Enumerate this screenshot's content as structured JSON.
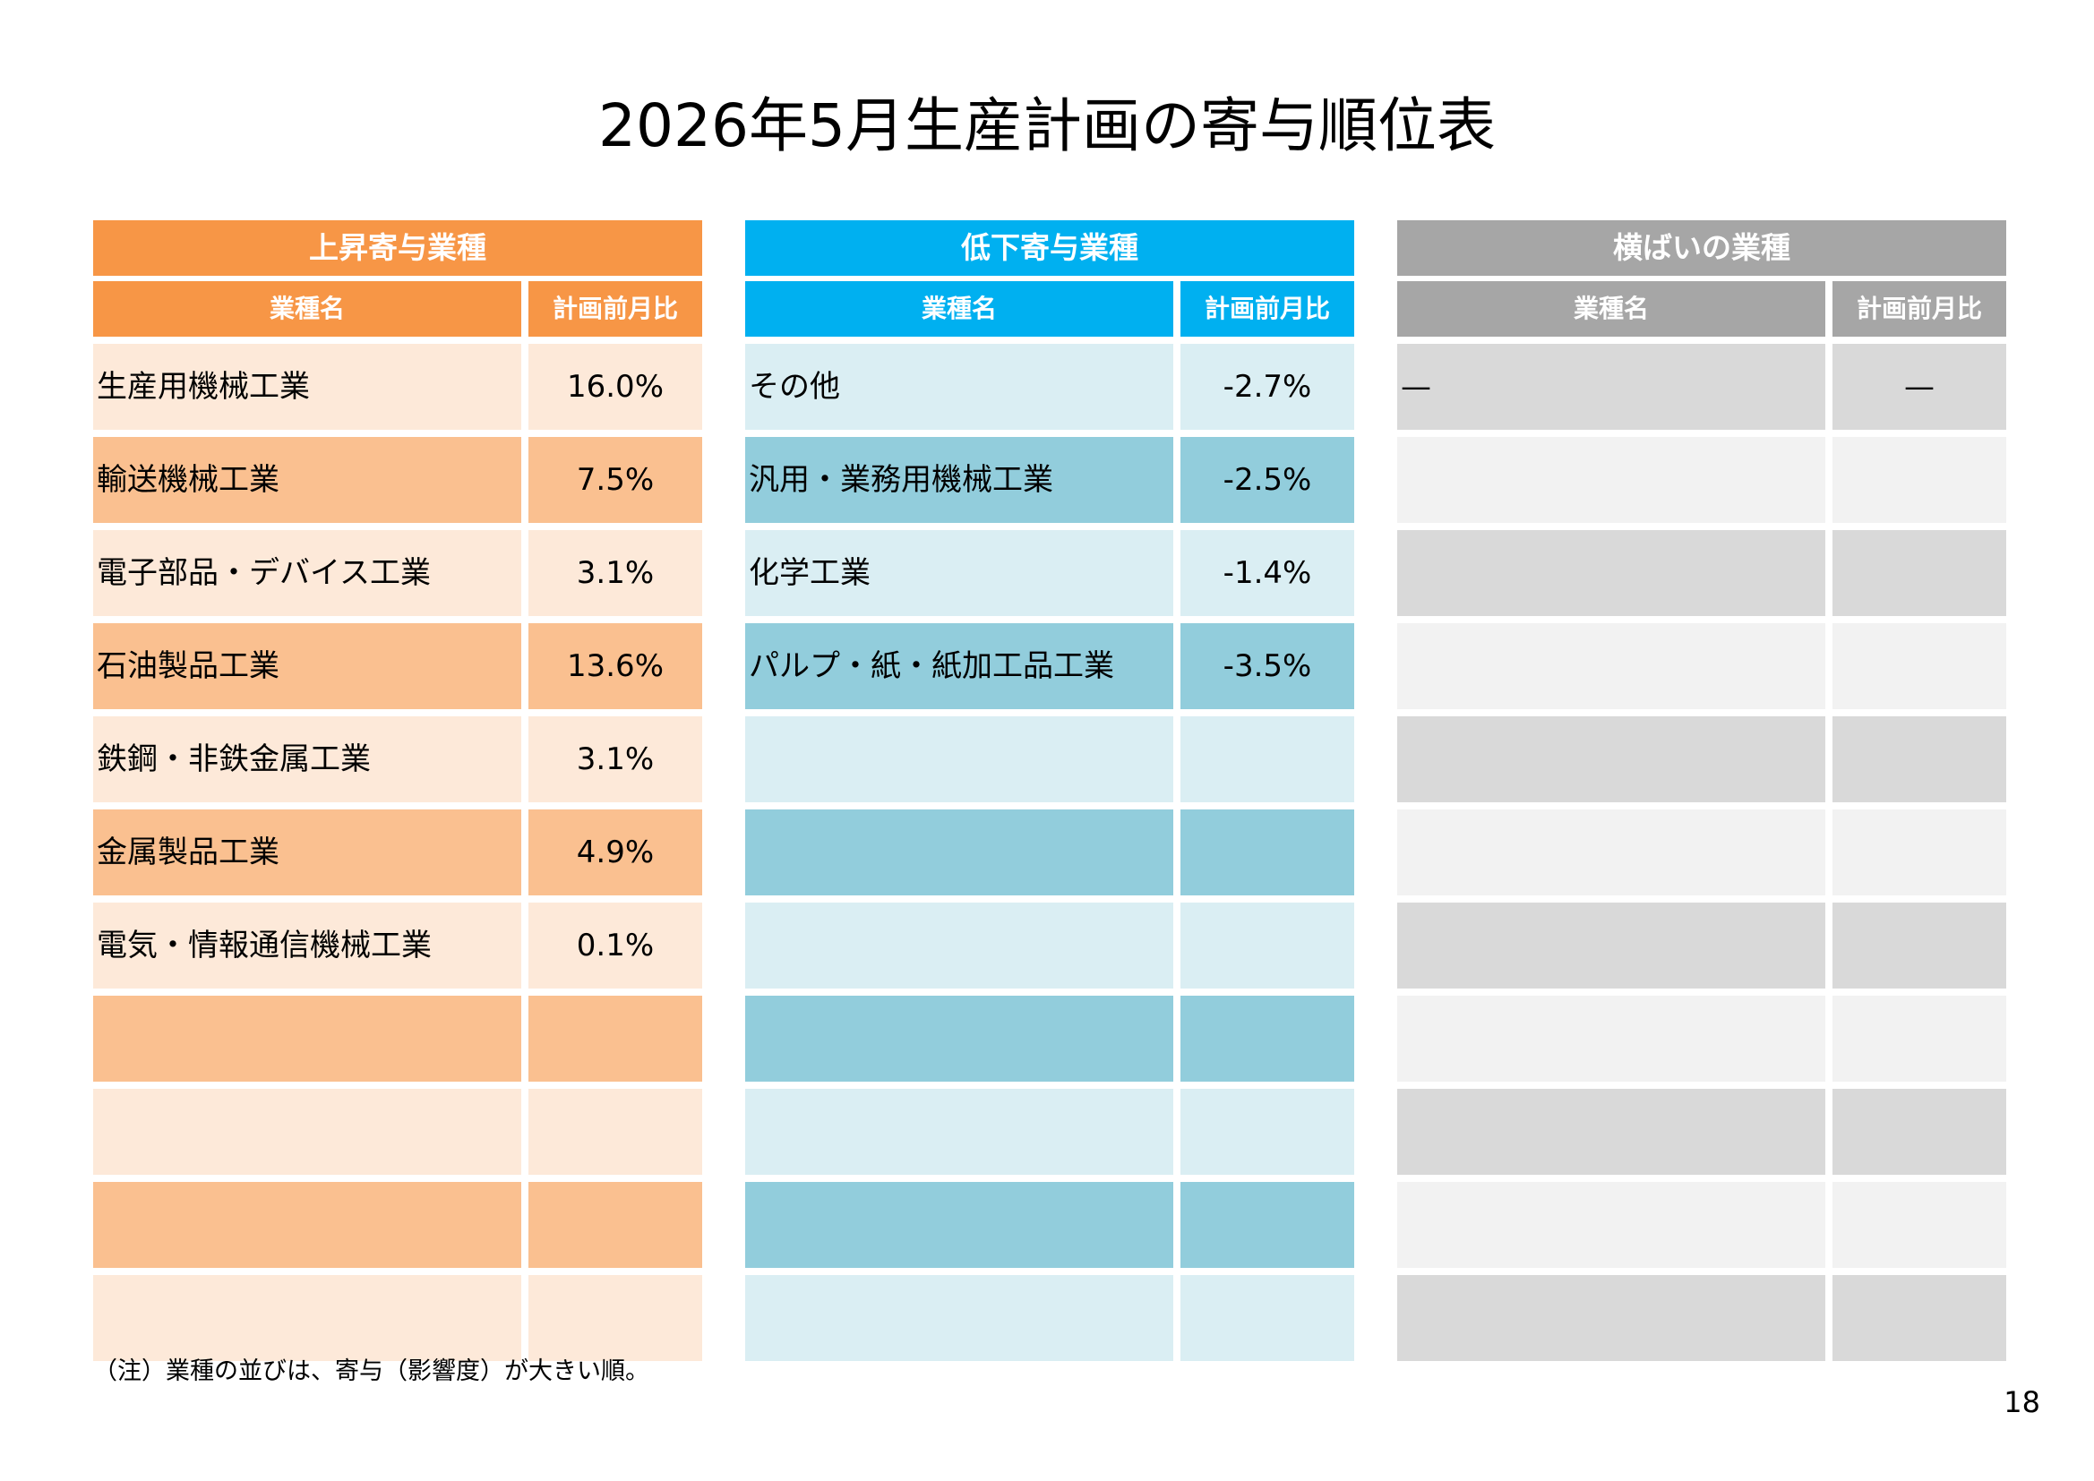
{
  "title": "2026年5月生産計画の寄与順位表",
  "panels": [
    {
      "heading": "上昇寄与業種",
      "col_name": "業種名",
      "col_value": "計画前月比",
      "rows": [
        {
          "name": "生産用機械工業",
          "value": "16.0%"
        },
        {
          "name": "輸送機械工業",
          "value": "7.5%"
        },
        {
          "name": "電子部品・デバイス工業",
          "value": "3.1%"
        },
        {
          "name": "石油製品工業",
          "value": "13.6%"
        },
        {
          "name": "鉄鋼・非鉄金属工業",
          "value": "3.1%"
        },
        {
          "name": "金属製品工業",
          "value": "4.9%"
        },
        {
          "name": "電気・情報通信機械工業",
          "value": "0.1%"
        },
        {
          "name": "",
          "value": ""
        },
        {
          "name": "",
          "value": ""
        },
        {
          "name": "",
          "value": ""
        },
        {
          "name": "",
          "value": ""
        }
      ]
    },
    {
      "heading": "低下寄与業種",
      "col_name": "業種名",
      "col_value": "計画前月比",
      "rows": [
        {
          "name": "その他",
          "value": "-2.7%"
        },
        {
          "name": "汎用・業務用機械工業",
          "value": "-2.5%"
        },
        {
          "name": "化学工業",
          "value": "-1.4%"
        },
        {
          "name": "パルプ・紙・紙加工品工業",
          "value": "-3.5%"
        },
        {
          "name": "",
          "value": ""
        },
        {
          "name": "",
          "value": ""
        },
        {
          "name": "",
          "value": ""
        },
        {
          "name": "",
          "value": ""
        },
        {
          "name": "",
          "value": ""
        },
        {
          "name": "",
          "value": ""
        },
        {
          "name": "",
          "value": ""
        }
      ]
    },
    {
      "heading": "横ばいの業種",
      "col_name": "業種名",
      "col_value": "計画前月比",
      "rows": [
        {
          "name": "—",
          "value": "—"
        },
        {
          "name": "",
          "value": ""
        },
        {
          "name": "",
          "value": ""
        },
        {
          "name": "",
          "value": ""
        },
        {
          "name": "",
          "value": ""
        },
        {
          "name": "",
          "value": ""
        },
        {
          "name": "",
          "value": ""
        },
        {
          "name": "",
          "value": ""
        },
        {
          "name": "",
          "value": ""
        },
        {
          "name": "",
          "value": ""
        },
        {
          "name": "",
          "value": ""
        }
      ]
    }
  ],
  "note": "（注）業種の並びは、寄与（影響度）が大きい順。",
  "page_number": "18",
  "colors": {
    "rise_header": "#f79646",
    "rise_row_light": "#fde9d9",
    "rise_row_dark": "#fac090",
    "fall_header": "#00b0f0",
    "fall_row_light": "#daeef3",
    "fall_row_dark": "#92cddc",
    "flat_header": "#a6a6a6",
    "flat_row_dark": "#d9d9d9",
    "flat_row_light": "#f2f2f2"
  }
}
